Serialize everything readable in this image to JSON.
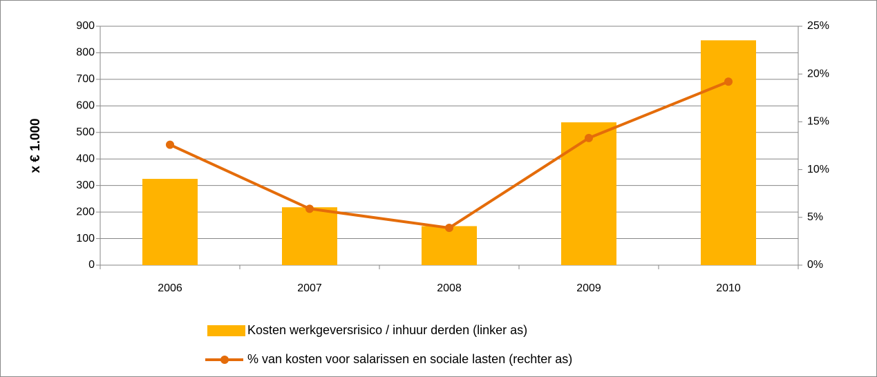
{
  "chart_data": {
    "type": "bar_line",
    "y_label": "x € 1.000",
    "categories": [
      "2006",
      "2007",
      "2008",
      "2009",
      "2010"
    ],
    "series": [
      {
        "name": "Kosten werkgeversrisico / inhuur derden (linker as)",
        "type": "bar",
        "color": "#ffb300",
        "values": [
          325,
          218,
          147,
          538,
          847
        ]
      },
      {
        "name": "% van kosten voor salarissen en sociale lasten (rechter as)",
        "type": "line",
        "axis": "y2",
        "color": "#e46c0a",
        "values": [
          12.6,
          5.9,
          3.9,
          13.3,
          19.2
        ]
      }
    ],
    "ylim": [
      0,
      900
    ],
    "yticks": [
      0,
      100,
      200,
      300,
      400,
      500,
      600,
      700,
      800,
      900
    ],
    "y2lim": [
      0,
      25
    ],
    "y2ticks": [
      {
        "value": 0,
        "label": "0%"
      },
      {
        "value": 5,
        "label": "5%"
      },
      {
        "value": 10,
        "label": "10%"
      },
      {
        "value": 15,
        "label": "15%"
      },
      {
        "value": 20,
        "label": "20%"
      },
      {
        "value": 25,
        "label": "25%"
      }
    ],
    "grid": true,
    "legend": "bottom"
  }
}
